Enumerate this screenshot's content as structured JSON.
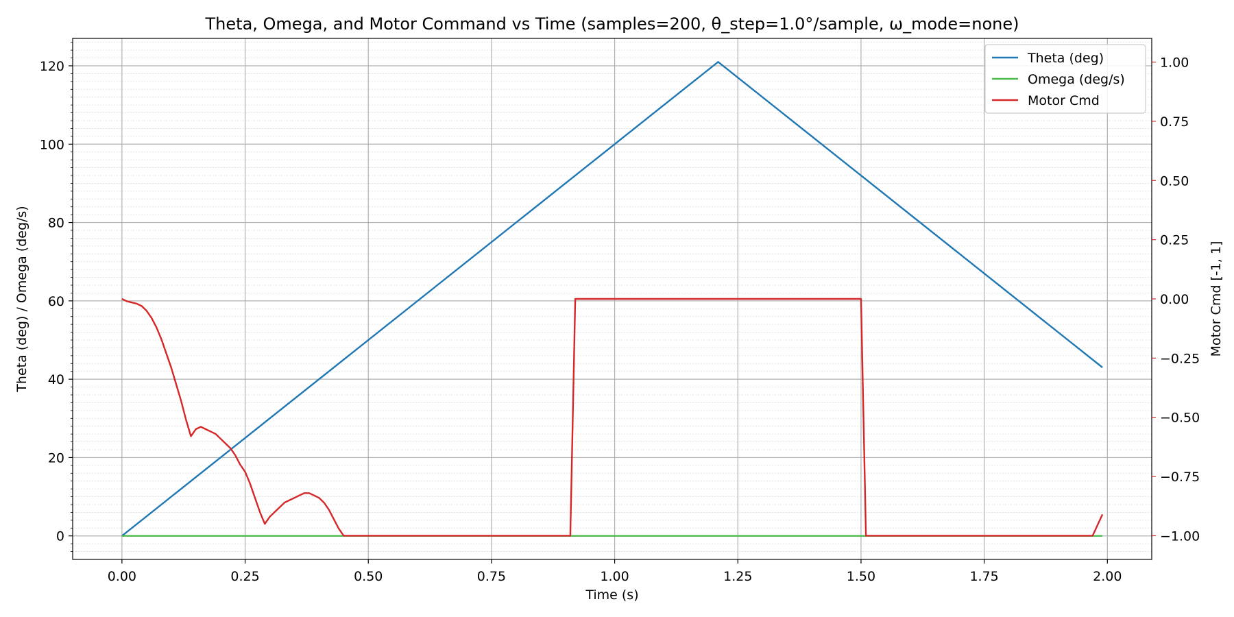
{
  "chart_data": {
    "type": "line",
    "title": "Theta, Omega, and Motor Command vs Time  (samples=200, θ_step=1.0°/sample, ω_mode=none)",
    "xlabel": "Time (s)",
    "ylabel_left": "Theta (deg) / Omega (deg/s)",
    "ylabel_right": "Motor Cmd [-1, 1]",
    "xlim": [
      -0.1,
      2.09
    ],
    "ylim_left": [
      -6,
      127
    ],
    "ylim_right": [
      -1.1,
      1.1
    ],
    "x_ticks": [
      0.0,
      0.25,
      0.5,
      0.75,
      1.0,
      1.25,
      1.5,
      1.75,
      2.0
    ],
    "x_tick_labels": [
      "0.00",
      "0.25",
      "0.50",
      "0.75",
      "1.00",
      "1.25",
      "1.50",
      "1.75",
      "2.00"
    ],
    "y_left_ticks": [
      0,
      20,
      40,
      60,
      80,
      100,
      120
    ],
    "y_left_tick_labels": [
      "0",
      "20",
      "40",
      "60",
      "80",
      "100",
      "120"
    ],
    "y_right_ticks": [
      -1.0,
      -0.75,
      -0.5,
      -0.25,
      0.0,
      0.25,
      0.5,
      0.75,
      1.0
    ],
    "y_right_tick_labels": [
      "−1.00",
      "−0.75",
      "−0.50",
      "−0.25",
      "0.00",
      "0.25",
      "0.50",
      "0.75",
      "1.00"
    ],
    "grid": true,
    "minor_grid": true,
    "legend_position": "top-right",
    "series": [
      {
        "name": "Theta (deg)",
        "axis": "left",
        "color": "#1f77b4",
        "x": [
          0.0,
          1.21,
          1.99
        ],
        "y": [
          0,
          121,
          43
        ]
      },
      {
        "name": "Omega (deg/s)",
        "axis": "left",
        "color": "#4cbb4c",
        "x": [
          0.0,
          1.99
        ],
        "y": [
          0,
          0
        ]
      },
      {
        "name": "Motor Cmd",
        "axis": "right",
        "color": "#d62728",
        "x": [
          0.0,
          0.01,
          0.02,
          0.03,
          0.04,
          0.05,
          0.06,
          0.07,
          0.08,
          0.09,
          0.1,
          0.11,
          0.12,
          0.13,
          0.14,
          0.15,
          0.16,
          0.17,
          0.18,
          0.19,
          0.2,
          0.21,
          0.22,
          0.23,
          0.24,
          0.25,
          0.26,
          0.27,
          0.28,
          0.29,
          0.3,
          0.31,
          0.32,
          0.33,
          0.34,
          0.35,
          0.36,
          0.37,
          0.38,
          0.39,
          0.4,
          0.41,
          0.42,
          0.43,
          0.44,
          0.45,
          0.91,
          0.92,
          1.5,
          1.51,
          1.97,
          1.99
        ],
        "y": [
          0.0,
          -0.01,
          -0.015,
          -0.02,
          -0.03,
          -0.05,
          -0.08,
          -0.12,
          -0.17,
          -0.23,
          -0.29,
          -0.36,
          -0.43,
          -0.51,
          -0.58,
          -0.55,
          -0.54,
          -0.55,
          -0.56,
          -0.57,
          -0.59,
          -0.61,
          -0.63,
          -0.66,
          -0.7,
          -0.73,
          -0.78,
          -0.84,
          -0.9,
          -0.95,
          -0.92,
          -0.9,
          -0.88,
          -0.86,
          -0.85,
          -0.84,
          -0.83,
          -0.82,
          -0.82,
          -0.83,
          -0.84,
          -0.86,
          -0.89,
          -0.93,
          -0.97,
          -1.0,
          -1.0,
          0.0,
          0.0,
          -1.0,
          -1.0,
          -0.91
        ]
      }
    ]
  }
}
